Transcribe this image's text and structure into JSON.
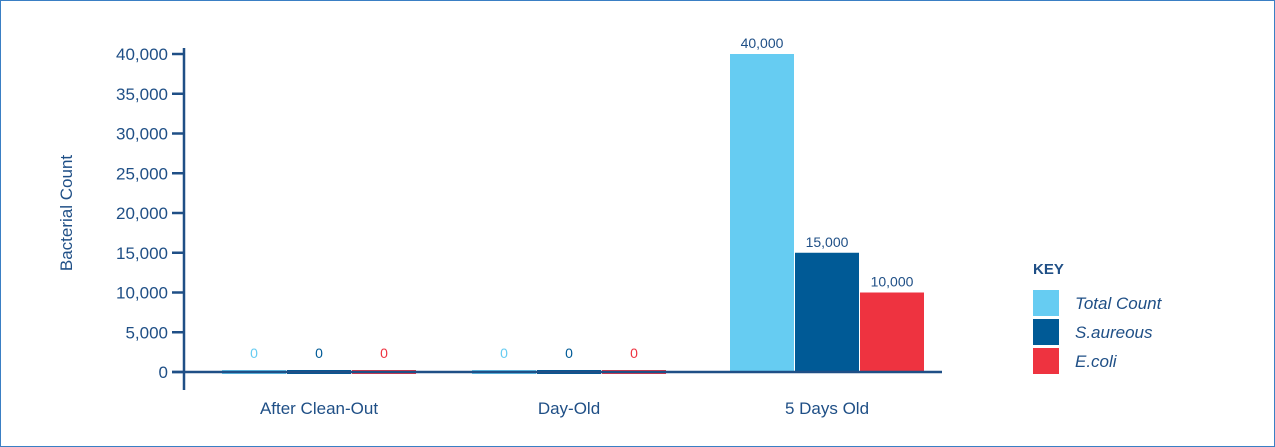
{
  "chart_data": {
    "type": "bar",
    "title": "",
    "xlabel": "",
    "ylabel": "Bacterial Count",
    "ylim": [
      0,
      40000
    ],
    "yticks": [
      0,
      5000,
      10000,
      15000,
      20000,
      25000,
      30000,
      35000,
      40000
    ],
    "ytick_labels": [
      "0",
      "5,000",
      "10,000",
      "15,000",
      "20,000",
      "25,000",
      "30,000",
      "35,000",
      "40,000"
    ],
    "categories": [
      "After Clean-Out",
      "Day-Old",
      "5 Days Old"
    ],
    "series": [
      {
        "name": "Total Count",
        "color": "#66ccf2",
        "values": [
          0,
          0,
          40000
        ],
        "labels": [
          "0",
          "0",
          "40,000"
        ]
      },
      {
        "name": "S.aureous",
        "color": "#005a96",
        "values": [
          0,
          0,
          15000
        ],
        "labels": [
          "0",
          "0",
          "15,000"
        ]
      },
      {
        "name": "E.coli",
        "color": "#ee3340",
        "values": [
          0,
          0,
          10000
        ],
        "labels": [
          "0",
          "0",
          "10,000"
        ]
      }
    ],
    "grid": false,
    "legend": {
      "title": "KEY",
      "placement": "right"
    }
  }
}
